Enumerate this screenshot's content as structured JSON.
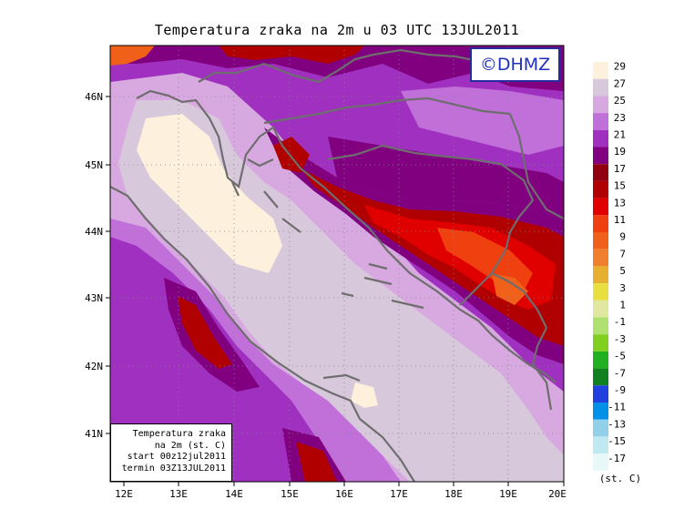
{
  "title": "Temperatura zraka na 2m u 03 UTC 13JUL2011",
  "logo": "©DHMZ",
  "info_box": {
    "line1": "Temperatura zraka",
    "line2": "na 2m (st. C)",
    "line3": "start 00z12jul2011",
    "line4": "termin 03Z13JUL2011"
  },
  "lat_labels": [
    "46N",
    "45N",
    "44N",
    "43N",
    "42N",
    "41N"
  ],
  "lon_labels": [
    "12E",
    "13E",
    "14E",
    "15E",
    "16E",
    "17E",
    "18E",
    "19E",
    "20E"
  ],
  "legend": {
    "unit": "(st. C)",
    "labels": [
      "29",
      "27",
      "25",
      "23",
      "21",
      "19",
      "17",
      "15",
      "13",
      "11",
      "9",
      "7",
      "5",
      "3",
      "1",
      "-1",
      "-3",
      "-5",
      "-7",
      "-9",
      "-11",
      "-13",
      "-15",
      "-17"
    ],
    "colors": [
      "#fdf0dc",
      "#d8c8dc",
      "#d8a8e0",
      "#c070d8",
      "#a030c0",
      "#800080",
      "#900010",
      "#b00000",
      "#e00000",
      "#f04010",
      "#f06018",
      "#f08030",
      "#e8b030",
      "#e8e040",
      "#e0e8a0",
      "#b0e070",
      "#80d020",
      "#20b020",
      "#108020",
      "#2040e0",
      "#0090e8",
      "#90d0e8",
      "#c0e8f0",
      "#e8f8f8"
    ]
  },
  "map_colors": {
    "warm_sea": "#fdf0dc",
    "sea": "#d8c8dc",
    "coast_zone": "#d8a8e0",
    "land_low": "#c070d8",
    "land_mid": "#a030c0",
    "land_high": "#800080",
    "cold_1": "#900010",
    "cold_2": "#b00000",
    "cold_3": "#e00000",
    "cold_4": "#f04010",
    "boundary": "#6e6e6e"
  }
}
